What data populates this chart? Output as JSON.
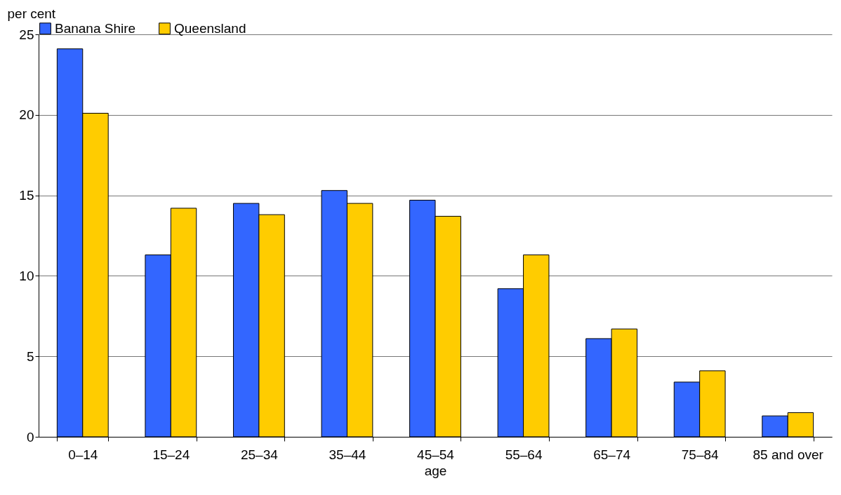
{
  "chart_data": {
    "type": "bar",
    "xlabel": "age",
    "ylabel": "per cent",
    "categories": [
      "0–14",
      "15–24",
      "25–34",
      "35–44",
      "45–54",
      "55–64",
      "65–74",
      "75–84",
      "85 and over"
    ],
    "series": [
      {
        "name": "Banana Shire",
        "color": "#3366ff",
        "values": [
          24.1,
          11.3,
          14.5,
          15.3,
          14.7,
          9.2,
          6.1,
          3.4,
          1.3
        ]
      },
      {
        "name": "Queensland",
        "color": "#ffcc00",
        "values": [
          20.1,
          14.2,
          13.8,
          14.5,
          13.7,
          11.3,
          6.7,
          4.1,
          1.5
        ]
      }
    ],
    "ylim": [
      0,
      25
    ],
    "yticks": [
      0,
      5,
      10,
      15,
      20,
      25
    ],
    "grid": "y",
    "legend": "top"
  }
}
